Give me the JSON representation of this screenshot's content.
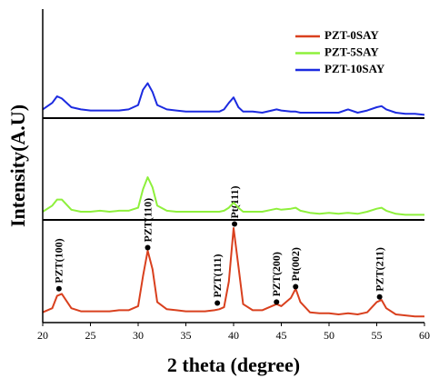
{
  "chart_data": [
    {
      "type": "line",
      "x": [
        20,
        21,
        21.5,
        22,
        23,
        24,
        25,
        26,
        27,
        28,
        29,
        30,
        30.5,
        31,
        31.5,
        32,
        33,
        34,
        35,
        36,
        37,
        38,
        38.5,
        39,
        39.5,
        40,
        40.5,
        41,
        42,
        43,
        44,
        44.5,
        45,
        46,
        46.5,
        47,
        48,
        49,
        50,
        51,
        52,
        53,
        54,
        55,
        55.5,
        56,
        57,
        58,
        59,
        60
      ],
      "series": [
        {
          "name": "PZT-0SAY",
          "color": "#d9401e",
          "values": [
            10,
            14,
            26,
            28,
            14,
            11,
            11,
            11,
            11,
            12,
            12,
            16,
            45,
            70,
            52,
            20,
            13,
            12,
            11,
            11,
            11,
            12,
            13,
            15,
            40,
            92,
            55,
            18,
            12,
            12,
            16,
            18,
            16,
            24,
            33,
            20,
            10,
            9,
            9,
            8,
            9,
            8,
            10,
            20,
            22,
            14,
            8,
            7,
            6,
            6
          ]
        }
      ],
      "ylim": [
        0,
        100
      ],
      "xlim": [
        20,
        60
      ],
      "xticks": [
        20,
        25,
        30,
        35,
        40,
        45,
        50,
        55,
        60
      ],
      "xlabel": "2 theta (degree)",
      "annotations": [
        {
          "text": "PZT(100)",
          "x": 21.7,
          "y": 33
        },
        {
          "text": "PZT(110)",
          "x": 31,
          "y": 73
        },
        {
          "text": "PZT(111)",
          "x": 38.3,
          "y": 19
        },
        {
          "text": "Pt(111)",
          "x": 40.1,
          "y": 96
        },
        {
          "text": "PZT(200)",
          "x": 44.5,
          "y": 20
        },
        {
          "text": "Pt(002)",
          "x": 46.5,
          "y": 35
        },
        {
          "text": "PZT(211)",
          "x": 55.3,
          "y": 25
        }
      ]
    },
    {
      "type": "line",
      "x": [
        20,
        21,
        21.5,
        22,
        23,
        24,
        25,
        26,
        27,
        28,
        29,
        30,
        30.5,
        31,
        31.5,
        32,
        33,
        34,
        35,
        36,
        37,
        38,
        38.5,
        39,
        39.5,
        40,
        40.5,
        41,
        42,
        43,
        44,
        44.5,
        45,
        46,
        46.5,
        47,
        48,
        49,
        50,
        51,
        52,
        53,
        54,
        55,
        55.5,
        56,
        57,
        58,
        59,
        60
      ],
      "series": [
        {
          "name": "PZT-5SAY",
          "color": "#8ef03c",
          "values": [
            8,
            14,
            20,
            20,
            10,
            8,
            8,
            9,
            8,
            9,
            9,
            12,
            30,
            42,
            32,
            14,
            9,
            8,
            8,
            8,
            8,
            8,
            8,
            9,
            12,
            17,
            12,
            8,
            8,
            8,
            10,
            11,
            10,
            11,
            12,
            9,
            7,
            6,
            7,
            6,
            7,
            6,
            8,
            11,
            12,
            9,
            6,
            5,
            5,
            5
          ]
        }
      ],
      "ylim": [
        0,
        100
      ],
      "ylabel": "Intensity(A.U)"
    },
    {
      "type": "line",
      "x": [
        20,
        21,
        21.5,
        22,
        23,
        24,
        25,
        26,
        27,
        28,
        29,
        30,
        30.5,
        31,
        31.5,
        32,
        33,
        34,
        35,
        36,
        37,
        38,
        38.5,
        39,
        39.5,
        40,
        40.5,
        41,
        42,
        43,
        44,
        44.5,
        45,
        46,
        46.5,
        47,
        48,
        49,
        50,
        51,
        52,
        53,
        54,
        55,
        55.5,
        56,
        57,
        58,
        59,
        60
      ],
      "series": [
        {
          "name": "PZT-10SAY",
          "color": "#1c2be0",
          "values": [
            8,
            14,
            20,
            18,
            10,
            8,
            7,
            7,
            7,
            7,
            8,
            12,
            26,
            32,
            24,
            12,
            8,
            7,
            6,
            6,
            6,
            6,
            6,
            8,
            14,
            19,
            10,
            6,
            6,
            5,
            7,
            8,
            7,
            6,
            6,
            5,
            5,
            5,
            5,
            5,
            8,
            5,
            7,
            10,
            11,
            8,
            5,
            4,
            4,
            3
          ]
        }
      ],
      "ylim": [
        0,
        100
      ]
    }
  ]
}
